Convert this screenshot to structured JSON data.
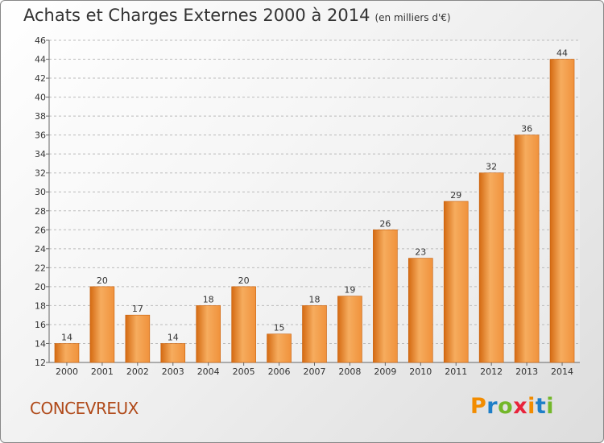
{
  "header": {
    "title": "Achats et Charges Externes 2000 à 2014",
    "unit": "(en milliers d'€)"
  },
  "town": "CONCEVREUX",
  "logo": {
    "letters": [
      "P",
      "r",
      "o",
      "x",
      "i",
      "t",
      "i"
    ],
    "colors": [
      "#f28c00",
      "#1e7fc8",
      "#73b72a",
      "#e8233b",
      "#f28c00",
      "#1e7fc8",
      "#73b72a"
    ]
  },
  "colors": {
    "bar": "#f0923c",
    "bar_dark": "#d46a12",
    "bar_light": "#f6ac5e",
    "text": "#333333",
    "grid": "#bbbbbb"
  },
  "chart_data": {
    "type": "bar",
    "title": "Achats et Charges Externes 2000 à 2014",
    "subtitle": "(en milliers d'€)",
    "categories": [
      "2000",
      "2001",
      "2002",
      "2003",
      "2004",
      "2005",
      "2006",
      "2007",
      "2008",
      "2009",
      "2010",
      "2011",
      "2012",
      "2013",
      "2014"
    ],
    "values": [
      14,
      20,
      17,
      14,
      18,
      20,
      15,
      18,
      19,
      26,
      23,
      29,
      32,
      36,
      44
    ],
    "yticks": [
      12,
      14,
      16,
      18,
      20,
      22,
      24,
      26,
      28,
      30,
      32,
      34,
      36,
      38,
      40,
      42,
      44,
      46
    ],
    "ylim": [
      12,
      46
    ],
    "grid": true,
    "legend": "none"
  }
}
